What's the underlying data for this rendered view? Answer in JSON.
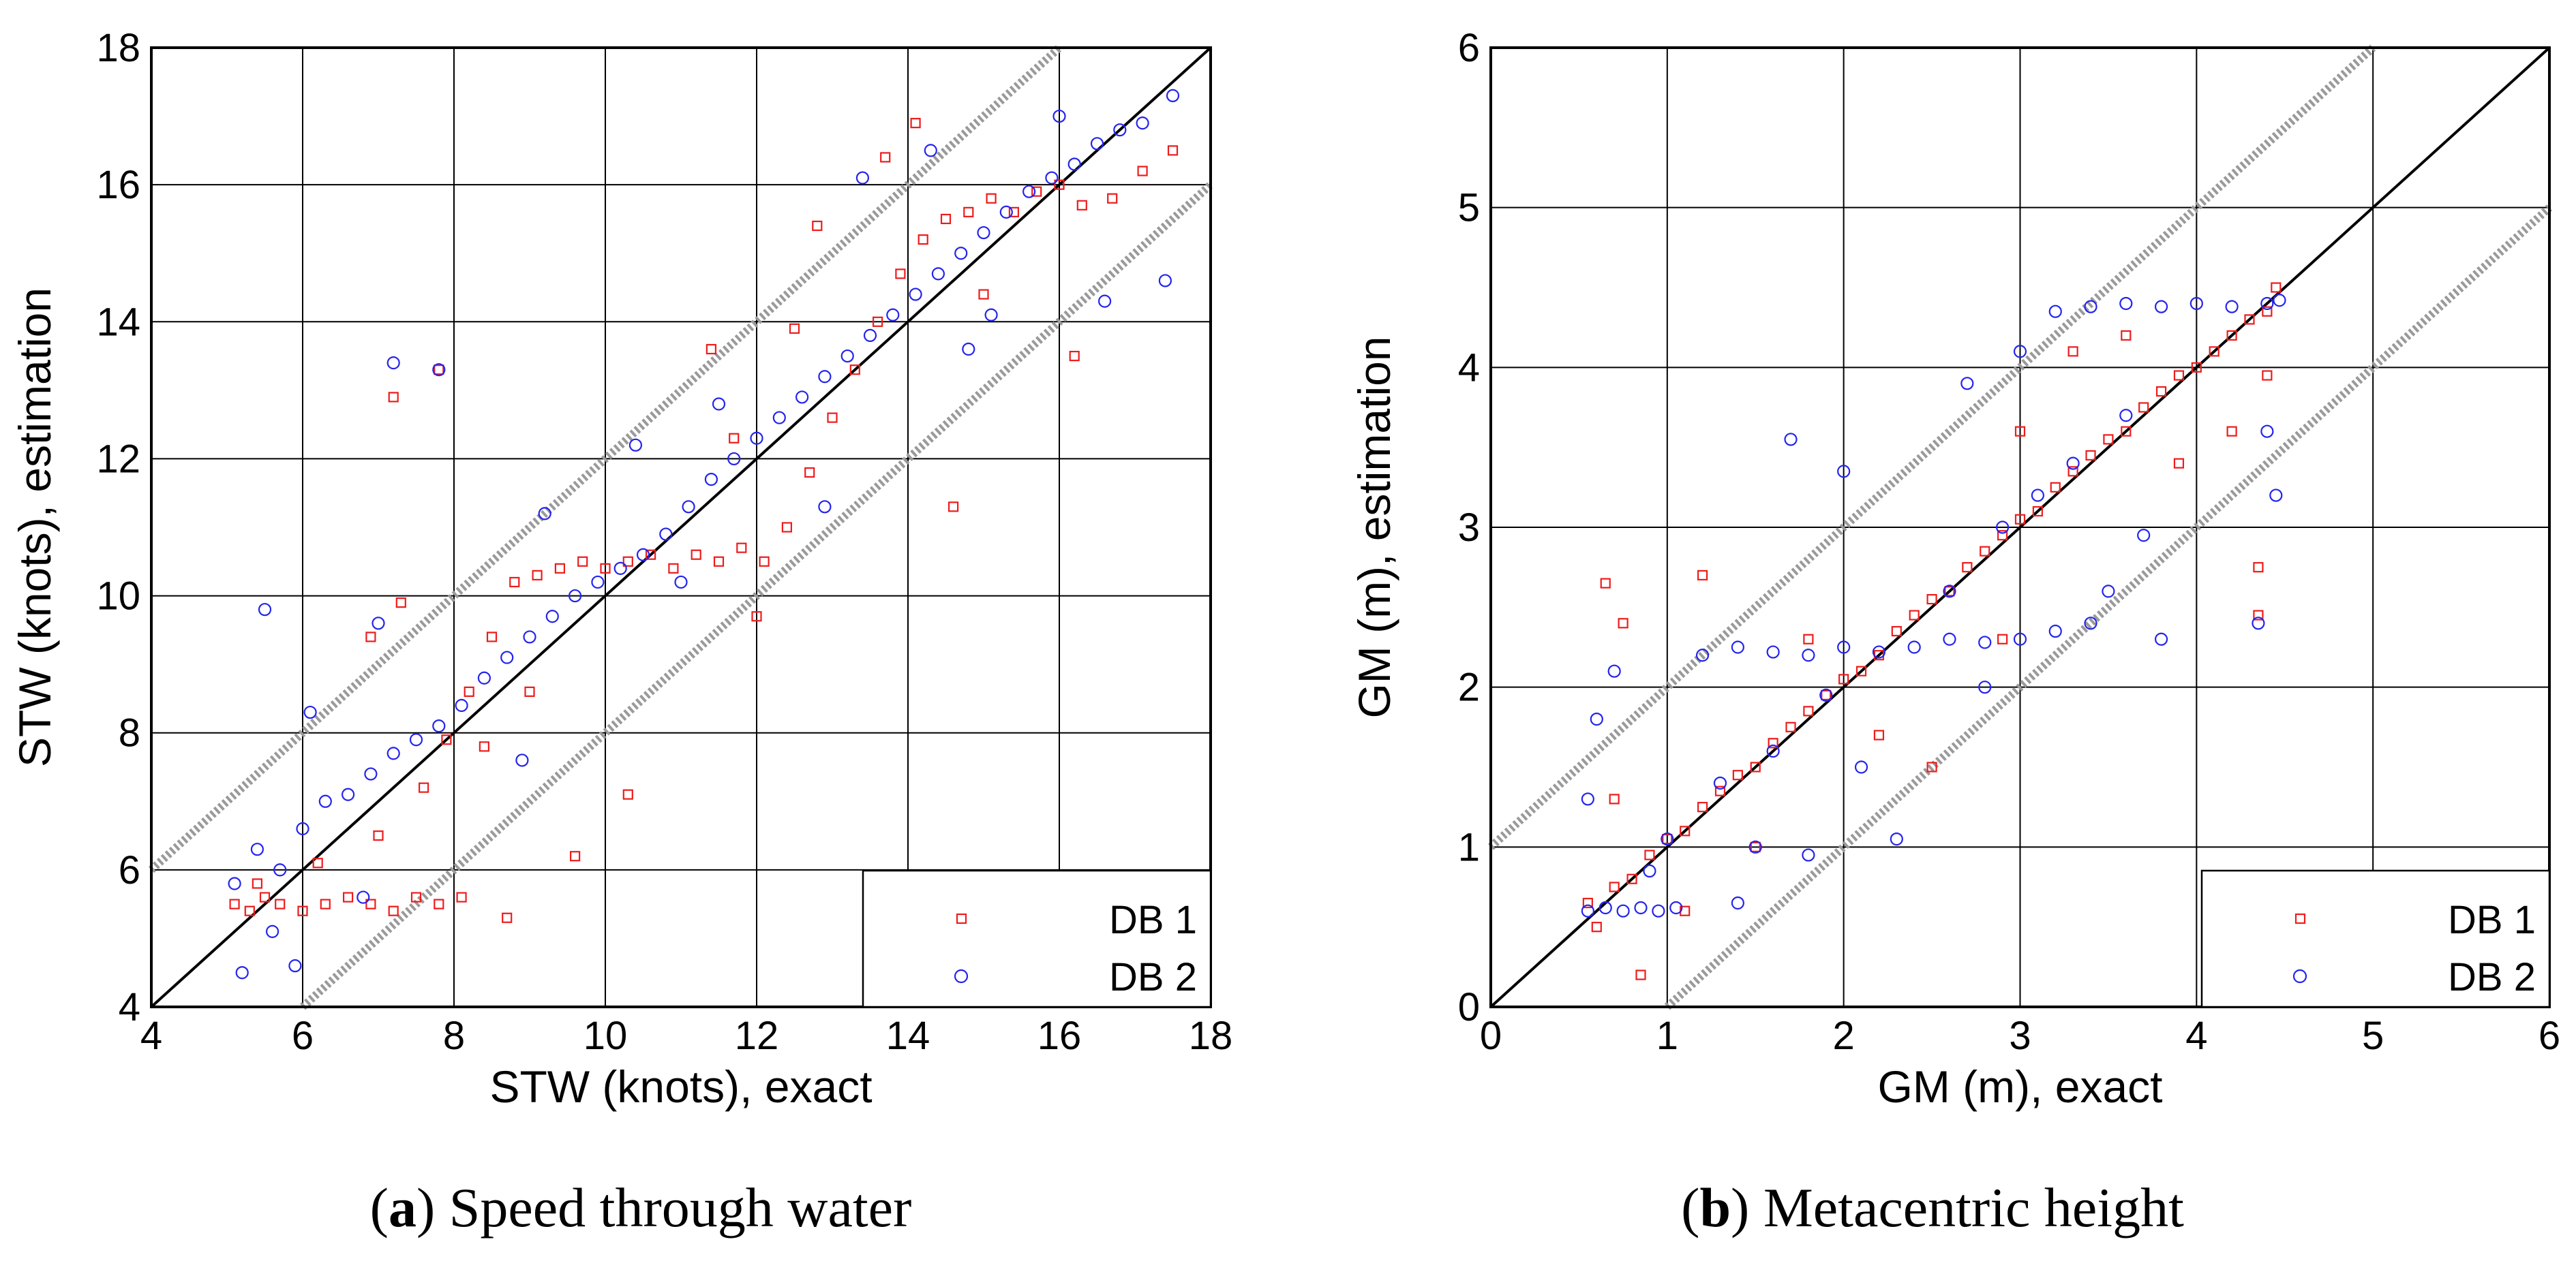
{
  "chart_data": [
    {
      "type": "scatter",
      "panel": "a",
      "caption_letter": "a",
      "caption_text": " Speed through water",
      "xlabel": "STW (knots), exact",
      "ylabel": "STW (knots), estimation",
      "xlim": [
        4,
        18
      ],
      "ylim": [
        4,
        18
      ],
      "xticks": [
        4,
        6,
        8,
        10,
        12,
        14,
        16,
        18
      ],
      "yticks": [
        4,
        6,
        8,
        10,
        12,
        14,
        16,
        18
      ],
      "tick_labels_x": [
        "4",
        "6",
        "8",
        "10",
        "12",
        "14",
        "16",
        "18"
      ],
      "tick_labels_y": [
        "4",
        "6",
        "8",
        "10",
        "12",
        "14",
        "16",
        "18"
      ],
      "grid": true,
      "reference_line": "y = x",
      "band_offset": 2,
      "legend_position": "bottom-right",
      "series": [
        {
          "name": "DB 1",
          "marker": "square",
          "color": "#ee1c1c",
          "points": [
            [
              5.1,
              5.5
            ],
            [
              5.3,
              5.4
            ],
            [
              5.5,
              5.6
            ],
            [
              5.7,
              5.5
            ],
            [
              6.0,
              5.4
            ],
            [
              6.3,
              5.5
            ],
            [
              6.6,
              5.6
            ],
            [
              6.9,
              5.5
            ],
            [
              7.2,
              5.4
            ],
            [
              7.5,
              5.6
            ],
            [
              7.8,
              5.5
            ],
            [
              8.1,
              5.6
            ],
            [
              5.4,
              5.8
            ],
            [
              6.2,
              6.1
            ],
            [
              7.0,
              6.5
            ],
            [
              7.6,
              7.2
            ],
            [
              7.9,
              7.9
            ],
            [
              8.2,
              8.6
            ],
            [
              8.5,
              9.4
            ],
            [
              8.8,
              10.2
            ],
            [
              9.1,
              10.3
            ],
            [
              9.4,
              10.4
            ],
            [
              9.7,
              10.5
            ],
            [
              10.0,
              10.4
            ],
            [
              10.3,
              10.5
            ],
            [
              10.6,
              10.6
            ],
            [
              10.9,
              10.4
            ],
            [
              11.2,
              10.6
            ],
            [
              11.5,
              10.5
            ],
            [
              11.8,
              10.7
            ],
            [
              12.1,
              10.5
            ],
            [
              12.4,
              11.0
            ],
            [
              12.7,
              11.8
            ],
            [
              13.0,
              12.6
            ],
            [
              13.3,
              13.3
            ],
            [
              13.6,
              14.0
            ],
            [
              13.9,
              14.7
            ],
            [
              14.2,
              15.2
            ],
            [
              14.5,
              15.5
            ],
            [
              14.8,
              15.6
            ],
            [
              15.1,
              15.8
            ],
            [
              15.4,
              15.6
            ],
            [
              15.7,
              15.9
            ],
            [
              16.0,
              16.0
            ],
            [
              16.3,
              15.7
            ],
            [
              16.7,
              15.8
            ],
            [
              17.1,
              16.2
            ],
            [
              17.5,
              16.5
            ],
            [
              7.2,
              12.9
            ],
            [
              7.8,
              13.3
            ],
            [
              14.1,
              16.9
            ],
            [
              14.6,
              11.3
            ],
            [
              12.0,
              9.7
            ],
            [
              10.3,
              7.1
            ],
            [
              9.6,
              6.2
            ],
            [
              8.7,
              5.3
            ],
            [
              6.9,
              9.4
            ],
            [
              7.3,
              9.9
            ],
            [
              11.4,
              13.6
            ],
            [
              12.8,
              15.4
            ],
            [
              13.7,
              16.4
            ],
            [
              15.0,
              14.4
            ],
            [
              16.2,
              13.5
            ],
            [
              8.4,
              7.8
            ],
            [
              9.0,
              8.6
            ],
            [
              11.7,
              12.3
            ],
            [
              12.5,
              13.9
            ]
          ]
        },
        {
          "name": "DB 2",
          "marker": "circle",
          "color": "#2424ee",
          "points": [
            [
              5.1,
              5.8
            ],
            [
              5.4,
              6.3
            ],
            [
              5.7,
              6.0
            ],
            [
              6.0,
              6.6
            ],
            [
              6.3,
              7.0
            ],
            [
              6.6,
              7.1
            ],
            [
              6.9,
              7.4
            ],
            [
              7.2,
              7.7
            ],
            [
              7.5,
              7.9
            ],
            [
              7.8,
              8.1
            ],
            [
              8.1,
              8.4
            ],
            [
              8.4,
              8.8
            ],
            [
              8.7,
              9.1
            ],
            [
              9.0,
              9.4
            ],
            [
              9.3,
              9.7
            ],
            [
              9.6,
              10.0
            ],
            [
              9.9,
              10.2
            ],
            [
              10.2,
              10.4
            ],
            [
              10.5,
              10.6
            ],
            [
              10.8,
              10.9
            ],
            [
              11.1,
              11.3
            ],
            [
              11.4,
              11.7
            ],
            [
              11.7,
              12.0
            ],
            [
              12.0,
              12.3
            ],
            [
              12.3,
              12.6
            ],
            [
              12.6,
              12.9
            ],
            [
              12.9,
              13.2
            ],
            [
              13.2,
              13.5
            ],
            [
              13.5,
              13.8
            ],
            [
              13.8,
              14.1
            ],
            [
              14.1,
              14.4
            ],
            [
              14.4,
              14.7
            ],
            [
              14.7,
              15.0
            ],
            [
              15.0,
              15.3
            ],
            [
              15.3,
              15.6
            ],
            [
              15.6,
              15.9
            ],
            [
              15.9,
              16.1
            ],
            [
              16.2,
              16.3
            ],
            [
              16.5,
              16.6
            ],
            [
              16.8,
              16.8
            ],
            [
              17.1,
              16.9
            ],
            [
              17.5,
              17.3
            ],
            [
              5.2,
              4.5
            ],
            [
              5.9,
              4.6
            ],
            [
              5.5,
              9.8
            ],
            [
              7.2,
              13.4
            ],
            [
              7.8,
              13.3
            ],
            [
              16.6,
              14.3
            ],
            [
              17.4,
              14.6
            ],
            [
              6.1,
              8.3
            ],
            [
              7.0,
              9.6
            ],
            [
              9.2,
              11.2
            ],
            [
              10.4,
              12.2
            ],
            [
              11.5,
              12.8
            ],
            [
              13.4,
              16.1
            ],
            [
              14.3,
              16.5
            ],
            [
              15.1,
              14.1
            ],
            [
              12.9,
              11.3
            ],
            [
              11.0,
              10.2
            ],
            [
              8.9,
              7.6
            ],
            [
              6.8,
              5.6
            ],
            [
              5.6,
              5.1
            ],
            [
              14.8,
              13.6
            ],
            [
              16.0,
              17.0
            ]
          ]
        }
      ]
    },
    {
      "type": "scatter",
      "panel": "b",
      "caption_letter": "b",
      "caption_text": " Metacentric height",
      "xlabel": "GM (m), exact",
      "ylabel": "GM (m), estimation",
      "xlim": [
        0,
        6
      ],
      "ylim": [
        0,
        6
      ],
      "xticks": [
        0,
        1,
        2,
        3,
        4,
        5,
        6
      ],
      "yticks": [
        0,
        1,
        2,
        3,
        4,
        5,
        6
      ],
      "tick_labels_x": [
        "0",
        "1",
        "2",
        "3",
        "4",
        "5",
        "6"
      ],
      "tick_labels_y": [
        "0",
        "1",
        "2",
        "3",
        "4",
        "5",
        "6"
      ],
      "grid": true,
      "reference_line": "y = x",
      "band_offset": 1,
      "legend_position": "bottom-right",
      "series": [
        {
          "name": "DB 1",
          "marker": "square",
          "color": "#ee1c1c",
          "points": [
            [
              0.55,
              0.65
            ],
            [
              0.6,
              0.5
            ],
            [
              0.7,
              0.75
            ],
            [
              0.8,
              0.8
            ],
            [
              0.9,
              0.95
            ],
            [
              1.0,
              1.05
            ],
            [
              1.1,
              1.1
            ],
            [
              1.2,
              1.25
            ],
            [
              1.3,
              1.35
            ],
            [
              1.4,
              1.45
            ],
            [
              1.5,
              1.5
            ],
            [
              1.6,
              1.65
            ],
            [
              1.7,
              1.75
            ],
            [
              1.8,
              1.85
            ],
            [
              1.9,
              1.95
            ],
            [
              2.0,
              2.05
            ],
            [
              2.1,
              2.1
            ],
            [
              2.2,
              2.2
            ],
            [
              2.3,
              2.35
            ],
            [
              2.4,
              2.45
            ],
            [
              2.5,
              2.55
            ],
            [
              2.6,
              2.6
            ],
            [
              2.7,
              2.75
            ],
            [
              2.8,
              2.85
            ],
            [
              2.9,
              2.95
            ],
            [
              3.0,
              3.05
            ],
            [
              3.1,
              3.1
            ],
            [
              3.2,
              3.25
            ],
            [
              3.3,
              3.35
            ],
            [
              3.4,
              3.45
            ],
            [
              3.5,
              3.55
            ],
            [
              3.6,
              3.6
            ],
            [
              3.7,
              3.75
            ],
            [
              3.8,
              3.85
            ],
            [
              3.9,
              3.95
            ],
            [
              4.0,
              4.0
            ],
            [
              4.1,
              4.1
            ],
            [
              4.2,
              4.2
            ],
            [
              4.3,
              4.3
            ],
            [
              4.4,
              4.35
            ],
            [
              4.45,
              4.5
            ],
            [
              0.65,
              2.65
            ],
            [
              1.2,
              2.7
            ],
            [
              0.85,
              0.2
            ],
            [
              0.75,
              2.4
            ],
            [
              4.35,
              2.75
            ],
            [
              4.35,
              2.45
            ],
            [
              4.4,
              3.95
            ],
            [
              3.3,
              4.1
            ],
            [
              2.9,
              2.3
            ],
            [
              1.5,
              1.0
            ],
            [
              1.8,
              2.3
            ],
            [
              2.5,
              1.5
            ],
            [
              3.6,
              4.2
            ],
            [
              4.2,
              3.6
            ],
            [
              0.7,
              1.3
            ],
            [
              1.1,
              0.6
            ],
            [
              2.2,
              1.7
            ],
            [
              3.0,
              3.6
            ],
            [
              3.9,
              3.4
            ]
          ]
        },
        {
          "name": "DB 2",
          "marker": "circle",
          "color": "#2424ee",
          "points": [
            [
              0.55,
              0.6
            ],
            [
              0.65,
              0.62
            ],
            [
              0.75,
              0.6
            ],
            [
              0.85,
              0.62
            ],
            [
              0.95,
              0.6
            ],
            [
              1.05,
              0.62
            ],
            [
              1.2,
              2.2
            ],
            [
              1.4,
              2.25
            ],
            [
              1.6,
              2.22
            ],
            [
              1.8,
              2.2
            ],
            [
              2.0,
              2.25
            ],
            [
              2.2,
              2.22
            ],
            [
              2.4,
              2.25
            ],
            [
              2.6,
              2.3
            ],
            [
              2.8,
              2.28
            ],
            [
              3.0,
              2.3
            ],
            [
              3.2,
              2.35
            ],
            [
              3.4,
              2.4
            ],
            [
              3.2,
              4.35
            ],
            [
              3.4,
              4.38
            ],
            [
              3.6,
              4.4
            ],
            [
              3.8,
              4.38
            ],
            [
              4.0,
              4.4
            ],
            [
              4.2,
              4.38
            ],
            [
              4.4,
              4.4
            ],
            [
              4.47,
              4.42
            ],
            [
              1.0,
              1.05
            ],
            [
              1.3,
              1.4
            ],
            [
              1.6,
              1.6
            ],
            [
              1.9,
              1.95
            ],
            [
              2.6,
              2.6
            ],
            [
              2.9,
              3.0
            ],
            [
              3.1,
              3.2
            ],
            [
              3.3,
              3.4
            ],
            [
              3.6,
              3.7
            ],
            [
              1.7,
              3.55
            ],
            [
              2.0,
              3.35
            ],
            [
              2.3,
              1.05
            ],
            [
              3.7,
              2.95
            ],
            [
              4.35,
              2.4
            ],
            [
              4.45,
              3.2
            ],
            [
              4.4,
              3.6
            ],
            [
              0.6,
              1.8
            ],
            [
              0.55,
              1.3
            ],
            [
              0.9,
              0.85
            ],
            [
              1.5,
              1.0
            ],
            [
              2.1,
              1.5
            ],
            [
              2.8,
              2.0
            ],
            [
              3.0,
              4.1
            ],
            [
              2.7,
              3.9
            ],
            [
              3.5,
              2.6
            ],
            [
              3.8,
              2.3
            ],
            [
              1.4,
              0.65
            ],
            [
              1.8,
              0.95
            ],
            [
              0.7,
              2.1
            ]
          ]
        }
      ]
    }
  ]
}
